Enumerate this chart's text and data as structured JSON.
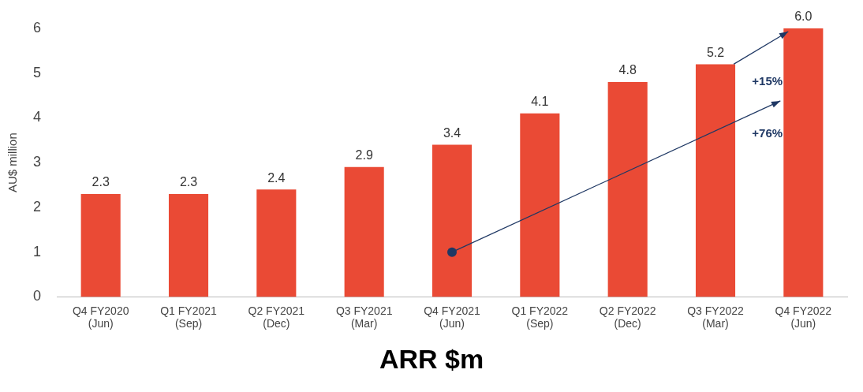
{
  "chart_data": {
    "type": "bar",
    "title": "ARR $m",
    "ylabel": "AU$ million",
    "categories": [
      "Q4 FY2020\n(Jun)",
      "Q1 FY2021\n(Sep)",
      "Q2 FY2021\n(Dec)",
      "Q3 FY2021\n(Mar)",
      "Q4 FY2021\n(Jun)",
      "Q1 FY2022\n(Sep)",
      "Q2 FY2022\n(Dec)",
      "Q3 FY2022\n(Mar)",
      "Q4 FY2022\n(Jun)"
    ],
    "values": [
      2.3,
      2.3,
      2.4,
      2.9,
      3.4,
      4.1,
      4.8,
      5.2,
      6.0
    ],
    "value_labels": [
      "2.3",
      "2.3",
      "2.4",
      "2.9",
      "3.4",
      "4.1",
      "4.8",
      "5.2",
      "6.0"
    ],
    "color": "#ea4a35",
    "ylim": [
      0,
      6
    ],
    "yticks": [
      0,
      1,
      2,
      3,
      4,
      5,
      6
    ],
    "grid": false,
    "legend": false,
    "annotations": [
      "+15%",
      "+76%"
    ]
  }
}
